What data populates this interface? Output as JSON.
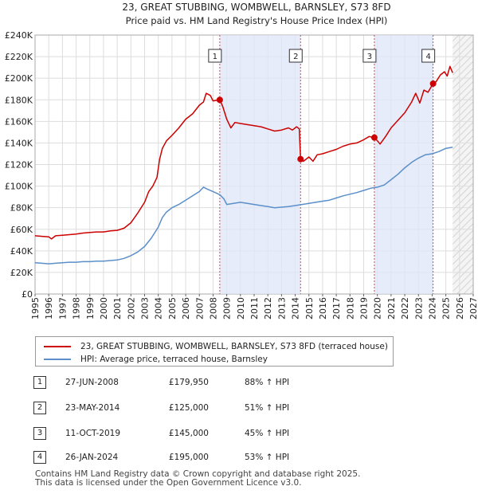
{
  "chart_data": {
    "type": "line",
    "title": "23, GREAT STUBBING, WOMBWELL, BARNSLEY, S73 8FD",
    "subtitle": "Price paid vs. HM Land Registry's House Price Index (HPI)",
    "xlim": [
      1995,
      2027
    ],
    "ylim": [
      0,
      240000
    ],
    "x_ticks": [
      "1995",
      "1996",
      "1997",
      "1998",
      "1999",
      "2000",
      "2001",
      "2002",
      "2003",
      "2004",
      "2005",
      "2006",
      "2007",
      "2008",
      "2009",
      "2010",
      "2011",
      "2012",
      "2013",
      "2014",
      "2015",
      "2016",
      "2017",
      "2018",
      "2019",
      "2020",
      "2021",
      "2022",
      "2023",
      "2024",
      "2025",
      "2026",
      "2027"
    ],
    "y_ticks": [
      "£0",
      "£20K",
      "£40K",
      "£60K",
      "£80K",
      "£100K",
      "£120K",
      "£140K",
      "£160K",
      "£180K",
      "£200K",
      "£220K",
      "£240K"
    ],
    "grid": true,
    "series": [
      {
        "name": "23, GREAT STUBBING, WOMBWELL, BARNSLEY, S73 8FD (terraced house)",
        "color": "#cc0000",
        "points": [
          [
            1995.0,
            54000
          ],
          [
            1995.5,
            53500
          ],
          [
            1996.0,
            53000
          ],
          [
            1996.2,
            51000
          ],
          [
            1996.5,
            54000
          ],
          [
            1997.0,
            54500
          ],
          [
            1997.5,
            55000
          ],
          [
            1998.0,
            55500
          ],
          [
            1998.5,
            56500
          ],
          [
            1999.0,
            57000
          ],
          [
            1999.5,
            57500
          ],
          [
            2000.0,
            57500
          ],
          [
            2000.5,
            58500
          ],
          [
            2001.0,
            59000
          ],
          [
            2001.5,
            61000
          ],
          [
            2002.0,
            66000
          ],
          [
            2002.5,
            75000
          ],
          [
            2003.0,
            85000
          ],
          [
            2003.3,
            95000
          ],
          [
            2003.6,
            100000
          ],
          [
            2003.9,
            108000
          ],
          [
            2004.1,
            125000
          ],
          [
            2004.3,
            135000
          ],
          [
            2004.6,
            142000
          ],
          [
            2005.0,
            147000
          ],
          [
            2005.5,
            154000
          ],
          [
            2006.0,
            162000
          ],
          [
            2006.5,
            167000
          ],
          [
            2007.0,
            175000
          ],
          [
            2007.3,
            178000
          ],
          [
            2007.5,
            186000
          ],
          [
            2007.8,
            184000
          ],
          [
            2008.0,
            179000
          ],
          [
            2008.49,
            179950
          ],
          [
            2008.7,
            174000
          ],
          [
            2009.0,
            162000
          ],
          [
            2009.3,
            154000
          ],
          [
            2009.6,
            159000
          ],
          [
            2010.0,
            158000
          ],
          [
            2010.5,
            157000
          ],
          [
            2011.0,
            156000
          ],
          [
            2011.5,
            155000
          ],
          [
            2012.0,
            153000
          ],
          [
            2012.5,
            151000
          ],
          [
            2013.0,
            152000
          ],
          [
            2013.5,
            154000
          ],
          [
            2013.8,
            152000
          ],
          [
            2014.1,
            155000
          ],
          [
            2014.3,
            153000
          ],
          [
            2014.39,
            125000
          ],
          [
            2014.6,
            123000
          ],
          [
            2015.0,
            127000
          ],
          [
            2015.3,
            123000
          ],
          [
            2015.6,
            129000
          ],
          [
            2016.0,
            130000
          ],
          [
            2016.5,
            132000
          ],
          [
            2017.0,
            134000
          ],
          [
            2017.5,
            137000
          ],
          [
            2018.0,
            139000
          ],
          [
            2018.5,
            140000
          ],
          [
            2019.0,
            143000
          ],
          [
            2019.4,
            146000
          ],
          [
            2019.78,
            145000
          ],
          [
            2020.0,
            142000
          ],
          [
            2020.2,
            139000
          ],
          [
            2020.6,
            146000
          ],
          [
            2021.0,
            154000
          ],
          [
            2021.5,
            161000
          ],
          [
            2022.0,
            168000
          ],
          [
            2022.5,
            178000
          ],
          [
            2022.8,
            186000
          ],
          [
            2023.1,
            177000
          ],
          [
            2023.4,
            189000
          ],
          [
            2023.7,
            187000
          ],
          [
            2024.07,
            195000
          ],
          [
            2024.3,
            197000
          ],
          [
            2024.6,
            203000
          ],
          [
            2024.9,
            206000
          ],
          [
            2025.1,
            202000
          ],
          [
            2025.3,
            211000
          ],
          [
            2025.5,
            205000
          ]
        ]
      },
      {
        "name": "HPI: Average price, terraced house, Barnsley",
        "color": "#5b8fc9",
        "points": [
          [
            1995.0,
            29000
          ],
          [
            1995.5,
            28500
          ],
          [
            1996.0,
            28000
          ],
          [
            1996.5,
            28500
          ],
          [
            1997.0,
            29000
          ],
          [
            1997.5,
            29500
          ],
          [
            1998.0,
            29500
          ],
          [
            1998.5,
            30000
          ],
          [
            1999.0,
            30000
          ],
          [
            1999.5,
            30500
          ],
          [
            2000.0,
            30500
          ],
          [
            2000.5,
            31000
          ],
          [
            2001.0,
            31500
          ],
          [
            2001.5,
            33000
          ],
          [
            2002.0,
            35500
          ],
          [
            2002.5,
            39000
          ],
          [
            2003.0,
            44000
          ],
          [
            2003.5,
            52000
          ],
          [
            2004.0,
            62000
          ],
          [
            2004.3,
            71000
          ],
          [
            2004.6,
            76000
          ],
          [
            2005.0,
            80000
          ],
          [
            2005.5,
            83000
          ],
          [
            2006.0,
            87000
          ],
          [
            2006.5,
            91000
          ],
          [
            2007.0,
            95000
          ],
          [
            2007.3,
            99000
          ],
          [
            2007.6,
            97000
          ],
          [
            2008.0,
            95000
          ],
          [
            2008.5,
            92000
          ],
          [
            2008.8,
            88000
          ],
          [
            2009.0,
            83000
          ],
          [
            2009.5,
            84000
          ],
          [
            2010.0,
            85000
          ],
          [
            2010.5,
            84000
          ],
          [
            2011.0,
            83000
          ],
          [
            2011.5,
            82000
          ],
          [
            2012.0,
            81000
          ],
          [
            2012.5,
            80000
          ],
          [
            2013.0,
            80500
          ],
          [
            2013.5,
            81000
          ],
          [
            2014.0,
            82000
          ],
          [
            2014.5,
            83000
          ],
          [
            2015.0,
            84000
          ],
          [
            2015.5,
            85000
          ],
          [
            2016.0,
            86000
          ],
          [
            2016.5,
            87000
          ],
          [
            2017.0,
            89000
          ],
          [
            2017.5,
            91000
          ],
          [
            2018.0,
            92500
          ],
          [
            2018.5,
            94000
          ],
          [
            2019.0,
            96000
          ],
          [
            2019.5,
            98000
          ],
          [
            2020.0,
            99000
          ],
          [
            2020.5,
            101000
          ],
          [
            2021.0,
            106000
          ],
          [
            2021.5,
            111000
          ],
          [
            2022.0,
            117000
          ],
          [
            2022.5,
            122000
          ],
          [
            2023.0,
            126000
          ],
          [
            2023.5,
            129000
          ],
          [
            2024.0,
            130000
          ],
          [
            2024.5,
            132000
          ],
          [
            2025.0,
            135000
          ],
          [
            2025.5,
            136000
          ]
        ]
      }
    ],
    "sales": [
      {
        "label": "1",
        "x": 2008.49,
        "y": 179950
      },
      {
        "label": "2",
        "x": 2014.39,
        "y": 125000
      },
      {
        "label": "3",
        "x": 2019.78,
        "y": 145000
      },
      {
        "label": "4",
        "x": 2024.07,
        "y": 195000
      }
    ],
    "shaded_between_sales": [
      [
        2008.49,
        2014.39
      ],
      [
        2019.78,
        2024.07
      ]
    ],
    "hatched_from": 2025.5
  },
  "legend": {
    "property": "23, GREAT STUBBING, WOMBWELL, BARNSLEY, S73 8FD (terraced house)",
    "hpi": "HPI: Average price, terraced house, Barnsley"
  },
  "transactions": [
    {
      "num": "1",
      "date": "27-JUN-2008",
      "price": "£179,950",
      "hpi": "88% ↑ HPI"
    },
    {
      "num": "2",
      "date": "23-MAY-2014",
      "price": "£125,000",
      "hpi": "51% ↑ HPI"
    },
    {
      "num": "3",
      "date": "11-OCT-2019",
      "price": "£145,000",
      "hpi": "45% ↑ HPI"
    },
    {
      "num": "4",
      "date": "26-JAN-2024",
      "price": "£195,000",
      "hpi": "53% ↑ HPI"
    }
  ],
  "footer": {
    "line1": "Contains HM Land Registry data © Crown copyright and database right 2025.",
    "line2": "This data is licensed under the Open Government Licence v3.0."
  }
}
